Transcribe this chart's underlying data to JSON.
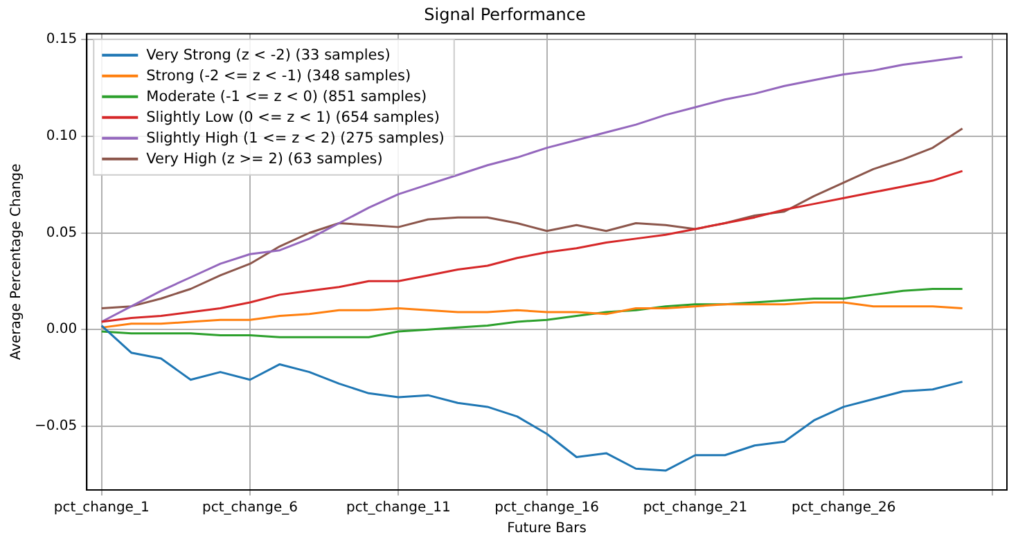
{
  "chart_data": {
    "type": "line",
    "title": "Signal Performance",
    "xlabel": "Future Bars",
    "ylabel": "Average Percentage Change",
    "categories": [
      "pct_change_1",
      null,
      null,
      null,
      null,
      "pct_change_6",
      null,
      null,
      null,
      null,
      "pct_change_11",
      null,
      null,
      null,
      null,
      "pct_change_16",
      null,
      null,
      null,
      null,
      "pct_change_21",
      null,
      null,
      null,
      null,
      "pct_change_26",
      null,
      null,
      null,
      null,
      null
    ],
    "series": [
      {
        "name": "Very Strong (z < -2) (33 samples)",
        "color": "#1f77b4",
        "values": [
          0.002,
          -0.012,
          -0.015,
          -0.026,
          -0.022,
          -0.026,
          -0.018,
          -0.022,
          -0.028,
          -0.033,
          -0.035,
          -0.034,
          -0.038,
          -0.04,
          -0.045,
          -0.054,
          -0.066,
          -0.064,
          -0.072,
          -0.073,
          -0.065,
          -0.065,
          -0.06,
          -0.058,
          -0.047,
          -0.04,
          -0.036,
          -0.032,
          -0.031,
          -0.027,
          null
        ]
      },
      {
        "name": "Strong (-2 <= z < -1) (348 samples)",
        "color": "#ff7f0e",
        "values": [
          0.001,
          0.003,
          0.003,
          0.004,
          0.005,
          0.005,
          0.007,
          0.008,
          0.01,
          0.01,
          0.011,
          0.01,
          0.009,
          0.009,
          0.01,
          0.009,
          0.009,
          0.008,
          0.011,
          0.011,
          0.012,
          0.013,
          0.013,
          0.013,
          0.014,
          0.014,
          0.012,
          0.012,
          0.012,
          0.011,
          null
        ]
      },
      {
        "name": "Moderate (-1 <= z < 0) (851 samples)",
        "color": "#2ca02c",
        "values": [
          -0.001,
          -0.002,
          -0.002,
          -0.002,
          -0.003,
          -0.003,
          -0.004,
          -0.004,
          -0.004,
          -0.004,
          -0.001,
          0.0,
          0.001,
          0.002,
          0.004,
          0.005,
          0.007,
          0.009,
          0.01,
          0.012,
          0.013,
          0.013,
          0.014,
          0.015,
          0.016,
          0.016,
          0.018,
          0.02,
          0.021,
          0.021,
          null
        ]
      },
      {
        "name": "Slightly Low (0 <= z < 1) (654 samples)",
        "color": "#d62728",
        "values": [
          0.004,
          0.006,
          0.007,
          0.009,
          0.011,
          0.014,
          0.018,
          0.02,
          0.022,
          0.025,
          0.025,
          0.028,
          0.031,
          0.033,
          0.037,
          0.04,
          0.042,
          0.045,
          0.047,
          0.049,
          0.052,
          0.055,
          0.058,
          0.062,
          0.065,
          0.068,
          0.071,
          0.074,
          0.077,
          0.082,
          null
        ]
      },
      {
        "name": "Slightly High (1 <= z < 2) (275 samples)",
        "color": "#9467bd",
        "values": [
          0.004,
          0.012,
          0.02,
          0.027,
          0.034,
          0.039,
          0.041,
          0.047,
          0.055,
          0.063,
          0.07,
          0.075,
          0.08,
          0.085,
          0.089,
          0.094,
          0.098,
          0.102,
          0.106,
          0.111,
          0.115,
          0.119,
          0.122,
          0.126,
          0.129,
          0.132,
          0.134,
          0.137,
          0.139,
          0.141,
          null
        ]
      },
      {
        "name": "Very High (z >= 2) (63 samples)",
        "color": "#8c564b",
        "values": [
          0.011,
          0.012,
          0.016,
          0.021,
          0.028,
          0.034,
          0.043,
          0.05,
          0.055,
          0.054,
          0.053,
          0.057,
          0.058,
          0.058,
          0.055,
          0.051,
          0.054,
          0.051,
          0.055,
          0.054,
          0.052,
          0.055,
          0.059,
          0.061,
          0.069,
          0.076,
          0.083,
          0.088,
          0.094,
          0.104,
          null
        ]
      }
    ],
    "ylim": [
      -0.083,
      0.153
    ],
    "yticks": [
      {
        "value": -0.05,
        "label": "−0.05"
      },
      {
        "value": 0,
        "label": "0.00"
      },
      {
        "value": 0.05,
        "label": "0.05"
      },
      {
        "value": 0.1,
        "label": "0.10"
      },
      {
        "value": 0.15,
        "label": "0.15"
      }
    ],
    "grid": true,
    "legend": "top left",
    "marker": "none",
    "line_style": "solid"
  }
}
